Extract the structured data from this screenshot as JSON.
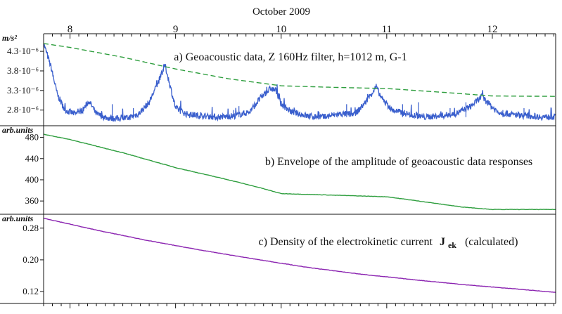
{
  "header": {
    "title": "October 2009"
  },
  "chart_data": [
    {
      "type": "line",
      "title": "a) Geoacoustic data, Z 160Hz filter, h=1012 m, G-1",
      "ylabel": "m/s²",
      "x_axis": {
        "label": "October 2009",
        "unit": "day",
        "range": [
          7.75,
          12.6
        ],
        "day_ticks": [
          "8",
          "9",
          "10",
          "11",
          "12"
        ]
      },
      "yticks": [
        {
          "value": 4.3e-06,
          "label": "4.3·10⁻⁶"
        },
        {
          "value": 3.8e-06,
          "label": "3.8·10⁻⁶"
        },
        {
          "value": 3.3e-06,
          "label": "3.3·10⁻⁶"
        },
        {
          "value": 2.8e-06,
          "label": "2.8·10⁻⁶"
        }
      ],
      "ylim": [
        2.4e-06,
        4.75e-06
      ],
      "series": [
        {
          "style": "solid",
          "color": "#3a5fcd",
          "points": [
            [
              7.75,
              4.5e-06
            ],
            [
              7.82,
              3.9e-06
            ],
            [
              7.88,
              3.2e-06
            ],
            [
              7.95,
              2.8e-06
            ],
            [
              8.05,
              2.7e-06
            ],
            [
              8.12,
              2.8e-06
            ],
            [
              8.18,
              3.03e-06
            ],
            [
              8.25,
              2.7e-06
            ],
            [
              8.35,
              2.6e-06
            ],
            [
              8.45,
              2.58e-06
            ],
            [
              8.55,
              2.6e-06
            ],
            [
              8.65,
              2.7e-06
            ],
            [
              8.75,
              3e-06
            ],
            [
              8.85,
              3.6e-06
            ],
            [
              8.9,
              3.95e-06
            ],
            [
              8.95,
              3.4e-06
            ],
            [
              9.0,
              2.85e-06
            ],
            [
              9.1,
              2.7e-06
            ],
            [
              9.25,
              2.65e-06
            ],
            [
              9.4,
              2.62e-06
            ],
            [
              9.55,
              2.65e-06
            ],
            [
              9.7,
              2.75e-06
            ],
            [
              9.8,
              3.1e-06
            ],
            [
              9.9,
              3.35e-06
            ],
            [
              9.95,
              3.3e-06
            ],
            [
              10.0,
              2.95e-06
            ],
            [
              10.1,
              2.75e-06
            ],
            [
              10.25,
              2.65e-06
            ],
            [
              10.4,
              2.62e-06
            ],
            [
              10.55,
              2.7e-06
            ],
            [
              10.7,
              2.7e-06
            ],
            [
              10.8,
              3e-06
            ],
            [
              10.9,
              3.4e-06
            ],
            [
              10.95,
              3.1e-06
            ],
            [
              11.05,
              2.8e-06
            ],
            [
              11.2,
              2.7e-06
            ],
            [
              11.35,
              2.62e-06
            ],
            [
              11.5,
              2.65e-06
            ],
            [
              11.65,
              2.7e-06
            ],
            [
              11.8,
              2.9e-06
            ],
            [
              11.9,
              3.15e-06
            ],
            [
              11.95,
              3e-06
            ],
            [
              12.05,
              2.75e-06
            ],
            [
              12.2,
              2.68e-06
            ],
            [
              12.35,
              2.65e-06
            ],
            [
              12.5,
              2.62e-06
            ],
            [
              12.6,
              2.63e-06
            ]
          ],
          "spikes": [
            [
              8.4,
              2.95e-06
            ],
            [
              8.6,
              2.85e-06
            ],
            [
              9.55,
              2.8e-06
            ],
            [
              9.6,
              2.9e-06
            ],
            [
              10.62,
              2.95e-06
            ],
            [
              11.15,
              2.95e-06
            ],
            [
              11.3,
              3e-06
            ],
            [
              11.6,
              2.85e-06
            ],
            [
              11.75,
              3e-06
            ],
            [
              12.1,
              2.8e-06
            ],
            [
              12.3,
              2.85e-06
            ]
          ]
        },
        {
          "style": "dashed",
          "color": "#2e9e3e",
          "points": [
            [
              7.75,
              4.5e-06
            ],
            [
              8.0,
              4.4e-06
            ],
            [
              8.5,
              4.15e-06
            ],
            [
              9.0,
              3.85e-06
            ],
            [
              9.5,
              3.6e-06
            ],
            [
              10.0,
              3.42e-06
            ],
            [
              10.5,
              3.38e-06
            ],
            [
              11.0,
              3.35e-06
            ],
            [
              11.5,
              3.26e-06
            ],
            [
              12.0,
              3.16e-06
            ],
            [
              12.6,
              3.15e-06
            ]
          ]
        }
      ]
    },
    {
      "type": "line",
      "title": "b) Envelope of the amplitude of geoacoustic data responses",
      "ylabel": "arb.units",
      "yticks": [
        {
          "value": 480,
          "label": "480"
        },
        {
          "value": 440,
          "label": "440"
        },
        {
          "value": 400,
          "label": "400"
        },
        {
          "value": 360,
          "label": "360"
        }
      ],
      "ylim": [
        335,
        502
      ],
      "series": [
        {
          "color": "#2e9e3e",
          "points": [
            [
              7.75,
              486
            ],
            [
              8.0,
              476
            ],
            [
              8.5,
              451
            ],
            [
              9.0,
              423
            ],
            [
              9.5,
              400
            ],
            [
              9.8,
              385
            ],
            [
              10.0,
              374
            ],
            [
              10.5,
              371
            ],
            [
              11.0,
              368
            ],
            [
              11.3,
              360
            ],
            [
              11.7,
              349
            ],
            [
              12.0,
              344
            ],
            [
              12.6,
              344
            ]
          ]
        }
      ]
    },
    {
      "type": "line",
      "title": "c) Density of the electrokinetic current",
      "title_symbol": "J",
      "title_symbol_sub": "ek",
      "title_suffix": "(calculated)",
      "ylabel": "arb.units",
      "yticks": [
        {
          "value": 0.28,
          "label": "0.28"
        },
        {
          "value": 0.2,
          "label": "0.20"
        },
        {
          "value": 0.12,
          "label": "0.12"
        }
      ],
      "ylim": [
        0.09,
        0.315
      ],
      "series": [
        {
          "color": "#8a22b0",
          "points": [
            [
              7.75,
              0.305
            ],
            [
              8.25,
              0.275
            ],
            [
              8.75,
              0.248
            ],
            [
              9.25,
              0.224
            ],
            [
              9.75,
              0.202
            ],
            [
              10.25,
              0.181
            ],
            [
              10.75,
              0.164
            ],
            [
              11.25,
              0.15
            ],
            [
              11.75,
              0.137
            ],
            [
              12.25,
              0.126
            ],
            [
              12.6,
              0.118
            ]
          ]
        }
      ]
    }
  ]
}
